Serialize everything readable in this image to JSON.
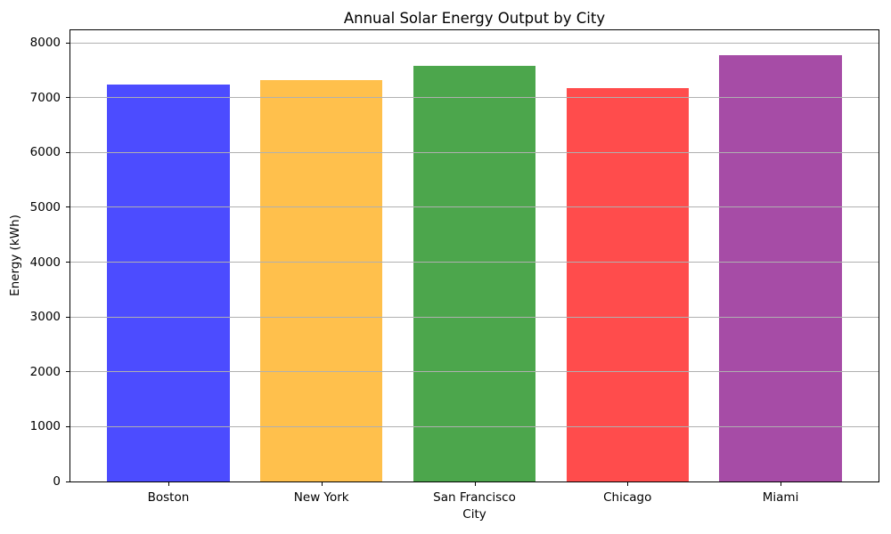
{
  "figure": {
    "background": "#ffffff"
  },
  "chart_data": {
    "type": "bar",
    "title": "Annual Solar Energy Output by City",
    "xlabel": "City",
    "ylabel": "Energy (kWh)",
    "categories": [
      "Boston",
      "New York",
      "San Francisco",
      "Chicago",
      "Miami"
    ],
    "values": [
      7240,
      7320,
      7580,
      7180,
      7780
    ],
    "bar_colors": [
      "rgba(0,0,255,0.7)",
      "rgba(255,165,0,0.7)",
      "rgba(0,128,0,0.7)",
      "rgba(255,0,0,0.7)",
      "rgba(128,0,128,0.7)"
    ],
    "bar_colors_hex_over_white": [
      "#4C4CFF",
      "#FFC04C",
      "#4CA64C",
      "#FF4C4C",
      "#A64CA6"
    ],
    "ylim": [
      0,
      8230
    ],
    "yticks": [
      0,
      1000,
      2000,
      3000,
      4000,
      5000,
      6000,
      7000,
      8000
    ],
    "grid": "horizontal",
    "grid_color": "#b0b0b0",
    "grid_above_bars": true,
    "spine_color": "#000000",
    "legend": "none"
  }
}
